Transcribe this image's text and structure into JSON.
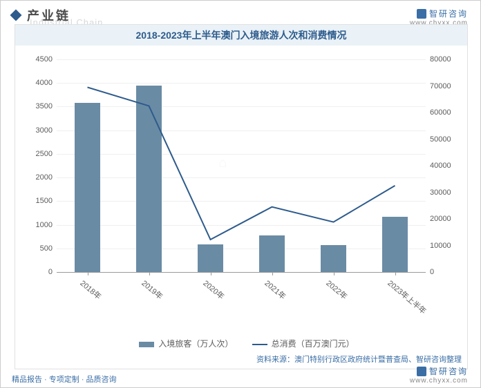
{
  "header": {
    "title": "产业链",
    "watermark_en": "Industrial Chain"
  },
  "brand": {
    "name": "智研咨询",
    "domain": "www.chyxx.com"
  },
  "chart": {
    "type": "combo-bar-line",
    "title": "2018-2023年上半年澳门入境旅游人次和消费情况",
    "categories": [
      "2018年",
      "2019年",
      "2020年",
      "2021年",
      "2022年",
      "2023年上半年"
    ],
    "left_axis": {
      "min": 0,
      "max": 4500,
      "step": 500,
      "ticks": [
        0,
        500,
        1000,
        1500,
        2000,
        2500,
        3000,
        3500,
        4000,
        4500
      ]
    },
    "right_axis": {
      "min": 0,
      "max": 80000,
      "step": 10000,
      "ticks": [
        0,
        10000,
        20000,
        30000,
        40000,
        50000,
        60000,
        70000,
        80000
      ]
    },
    "bar_series": {
      "name": "入境旅客（万人次）",
      "color": "#6a8ba4",
      "values": [
        3580,
        3940,
        590,
        770,
        570,
        1170
      ]
    },
    "line_series": {
      "name": "总消费（百万澳门元）",
      "color": "#2d5b8c",
      "line_width": 2,
      "values": [
        69500,
        62500,
        12200,
        24500,
        18800,
        32500
      ]
    },
    "bar_width_ratio": 0.42,
    "background_color": "#ffffff",
    "grid_color": "#efefef",
    "tick_fontsize": 11,
    "title_fontsize": 14,
    "legend_bar": "入境旅客（万人次）",
    "legend_line": "总消费（百万澳门元）",
    "source": "资料来源：澳门特别行政区政府统计暨普查局、智研咨询整理"
  },
  "footer": {
    "tagline": "精品报告 · 专项定制 · 品质咨询"
  }
}
